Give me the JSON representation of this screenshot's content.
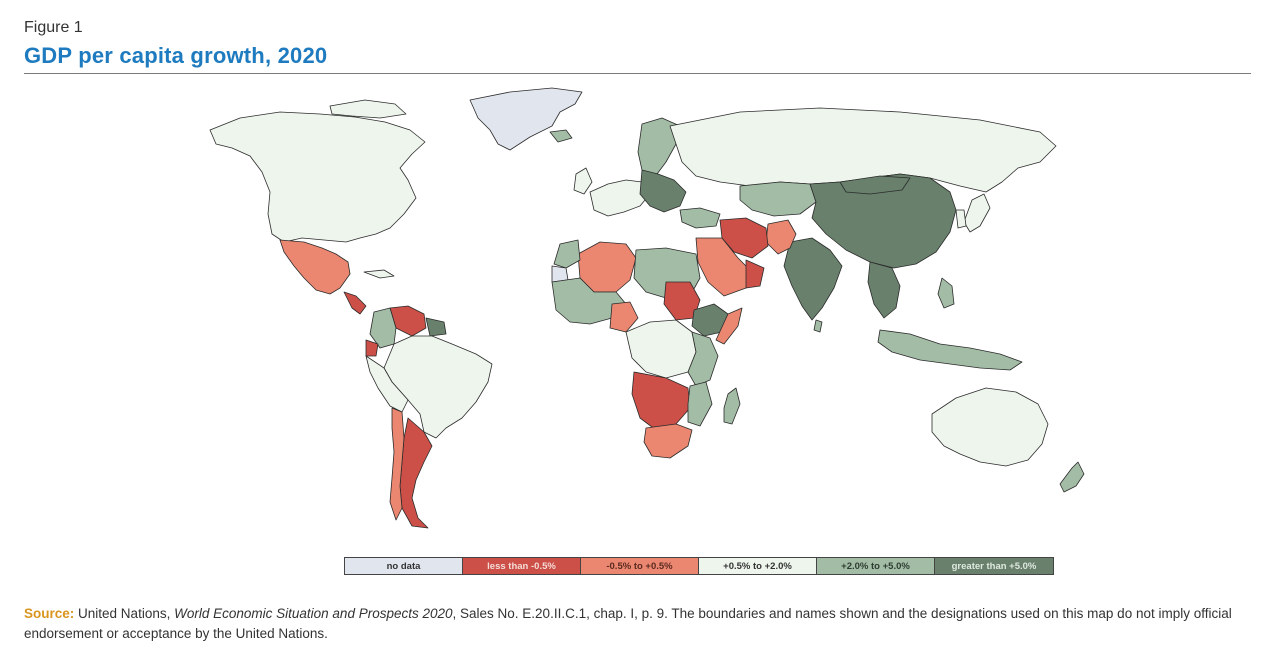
{
  "figure_label": "Figure 1",
  "title": "GDP per capita growth, 2020",
  "legend": [
    {
      "label": "no data",
      "color": "#e1e5ee",
      "text_color": "#333333"
    },
    {
      "label": "less than -0.5%",
      "color": "#cc5048",
      "text_color": "#f5dcd8"
    },
    {
      "label": "-0.5% to +0.5%",
      "color": "#eb8770",
      "text_color": "#5a2a20"
    },
    {
      "label": "+0.5% to +2.0%",
      "color": "#edf5ec",
      "text_color": "#333333"
    },
    {
      "label": "+2.0% to +5.0%",
      "color": "#a3bca6",
      "text_color": "#2e3d31"
    },
    {
      "label": "greater than +5.0%",
      "color": "#68806c",
      "text_color": "#dfe9df"
    }
  ],
  "source": {
    "label": "Source:",
    "text_before": "United Nations,",
    "publication": "World Economic Situation and Prospects 2020",
    "text_after": ", Sales No. E.20.II.C.1, chap. I, p. 9. The boundaries and names shown and the designations used on this map do not imply official endorsement or acceptance by the United Nations."
  },
  "colors": {
    "title": "#1f7bbf",
    "source_label": "#d9951e",
    "border": "#2b2b2b"
  }
}
